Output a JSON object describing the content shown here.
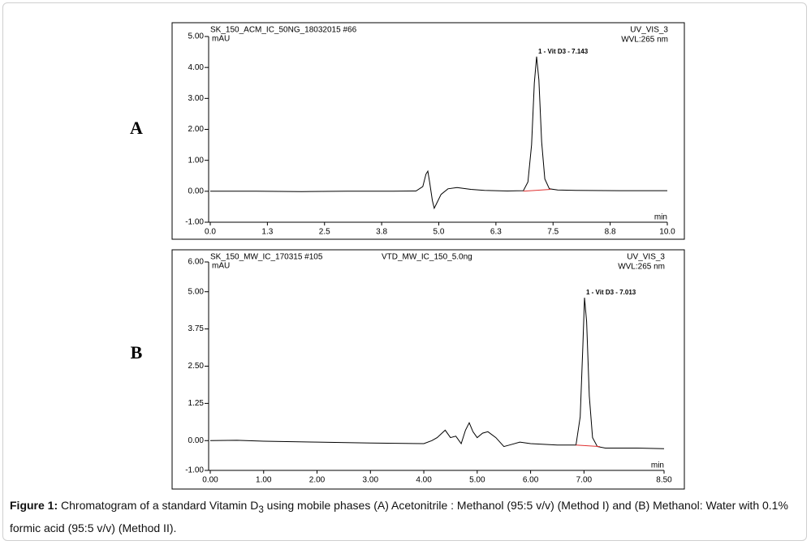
{
  "chart_data": [
    {
      "type": "line",
      "panel_label": "A",
      "header_left": "SK_150_ACM_IC_50NG_18032015 #66",
      "header_right": "UV_VIS_3",
      "y_unit": "mAU",
      "wavelength": "WVL:265 nm",
      "annotation": "1 - Vit D3 - 7.143",
      "x_label": "min",
      "color": "#000000",
      "x": [
        0,
        1,
        2,
        3,
        4,
        4.5,
        4.65,
        4.72,
        4.76,
        4.8,
        4.86,
        4.9,
        4.95,
        5.05,
        5.2,
        5.4,
        5.7,
        6.0,
        6.5,
        6.85,
        6.95,
        7.03,
        7.09,
        7.14,
        7.19,
        7.25,
        7.32,
        7.42,
        7.6,
        8,
        9,
        10
      ],
      "values": [
        0,
        0,
        -0.01,
        0,
        0,
        0.01,
        0.15,
        0.55,
        0.65,
        0.3,
        -0.3,
        -0.55,
        -0.4,
        -0.1,
        0.08,
        0.12,
        0.06,
        0.03,
        0.01,
        0.02,
        0.3,
        1.5,
        3.5,
        4.35,
        3.6,
        1.6,
        0.4,
        0.08,
        0.04,
        0.03,
        0.02,
        0.02
      ],
      "integration_baseline": {
        "x": [
          6.85,
          7.45
        ],
        "values": [
          0.0,
          0.06
        ],
        "color": "#e03030"
      },
      "xlim": [
        0,
        10
      ],
      "xticks": [
        {
          "value": 0,
          "label": "0.0"
        },
        {
          "value": 1.25,
          "label": "1.3"
        },
        {
          "value": 2.5,
          "label": "2.5"
        },
        {
          "value": 3.75,
          "label": "3.8"
        },
        {
          "value": 5,
          "label": "5.0"
        },
        {
          "value": 6.25,
          "label": "6.3"
        },
        {
          "value": 7.5,
          "label": "7.5"
        },
        {
          "value": 8.75,
          "label": "8.8"
        },
        {
          "value": 10,
          "label": "10.0"
        }
      ],
      "ylim": [
        -1,
        5
      ],
      "yticks": [
        {
          "value": -1,
          "label": "-1.00"
        },
        {
          "value": 0,
          "label": "0.00"
        },
        {
          "value": 1,
          "label": "1.00"
        },
        {
          "value": 2,
          "label": "2.00"
        },
        {
          "value": 3,
          "label": "3.00"
        },
        {
          "value": 4,
          "label": "4.00"
        },
        {
          "value": 5,
          "label": "5.00"
        }
      ]
    },
    {
      "type": "line",
      "panel_label": "B",
      "header_left": "SK_150_MW_IC_170315 #105",
      "header_center": "VTD_MW_IC_150_5.0ng",
      "header_right": "UV_VIS_3",
      "y_unit": "mAU",
      "wavelength": "WVL:265 nm",
      "annotation": "1 - Vit D3 - 7.013",
      "x_label": "min",
      "color": "#000000",
      "x": [
        0,
        0.5,
        1,
        2,
        3,
        4,
        4.15,
        4.25,
        4.4,
        4.5,
        4.6,
        4.7,
        4.78,
        4.85,
        4.92,
        5.0,
        5.1,
        5.2,
        5.35,
        5.5,
        5.6,
        5.8,
        6.0,
        6.5,
        6.85,
        6.93,
        6.98,
        7.01,
        7.05,
        7.1,
        7.16,
        7.25,
        7.4,
        8,
        8.5
      ],
      "values": [
        0,
        0.01,
        -0.02,
        -0.05,
        -0.08,
        -0.1,
        0.0,
        0.1,
        0.35,
        0.1,
        0.15,
        -0.1,
        0.35,
        0.6,
        0.3,
        0.1,
        0.25,
        0.3,
        0.1,
        -0.2,
        -0.15,
        -0.05,
        -0.1,
        -0.15,
        -0.15,
        0.8,
        3.2,
        4.8,
        4.0,
        1.5,
        0.1,
        -0.2,
        -0.25,
        -0.25,
        -0.27
      ],
      "integration_baseline": {
        "x": [
          6.85,
          7.3
        ],
        "values": [
          -0.15,
          -0.2
        ],
        "color": "#e03030"
      },
      "xlim": [
        0,
        8.5
      ],
      "xticks": [
        {
          "value": 0,
          "label": "0.00"
        },
        {
          "value": 1,
          "label": "1.00"
        },
        {
          "value": 2,
          "label": "2.00"
        },
        {
          "value": 3,
          "label": "3.00"
        },
        {
          "value": 4,
          "label": "4.00"
        },
        {
          "value": 5,
          "label": "5.00"
        },
        {
          "value": 6,
          "label": "6.00"
        },
        {
          "value": 7,
          "label": "7.00"
        },
        {
          "value": 8.5,
          "label": "8.50"
        }
      ],
      "ylim": [
        -1,
        6
      ],
      "yticks": [
        {
          "value": -1,
          "label": "-1.00"
        },
        {
          "value": 0,
          "label": "0.00"
        },
        {
          "value": 1.25,
          "label": "1.25"
        },
        {
          "value": 2.5,
          "label": "2.50"
        },
        {
          "value": 3.75,
          "label": "3.75"
        },
        {
          "value": 5,
          "label": "5.00"
        },
        {
          "value": 6,
          "label": "6.00"
        }
      ]
    }
  ],
  "caption": {
    "label": "Figure 1:",
    "text_1": " Chromatogram of a standard Vitamin D",
    "subscript": "3",
    "text_2": " using mobile phases (A) Acetonitrile : Methanol (95:5 v/v) (Method I) and (B) Methanol: Water with 0.1% formic acid (95:5 v/v) (Method II)."
  }
}
